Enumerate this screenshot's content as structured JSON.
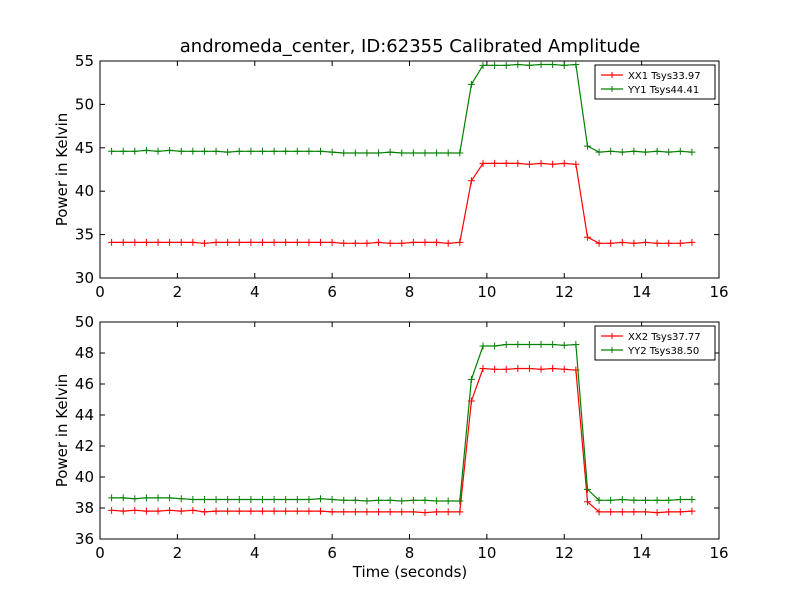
{
  "chart_data": [
    {
      "type": "line",
      "title": "andromeda_center, ID:62355 Calibrated Amplitude",
      "xlabel": "",
      "ylabel": "Power in Kelvin",
      "xlim": [
        0,
        16
      ],
      "ylim": [
        30,
        55
      ],
      "xticks": [
        "0",
        "2",
        "4",
        "6",
        "8",
        "10",
        "12",
        "14",
        "16"
      ],
      "yticks": [
        "30",
        "35",
        "40",
        "45",
        "50",
        "55"
      ],
      "legend_position": "top-right",
      "grid": false,
      "x": [
        0.3,
        0.6,
        0.9,
        1.2,
        1.5,
        1.8,
        2.1,
        2.4,
        2.7,
        3.0,
        3.3,
        3.6,
        3.9,
        4.2,
        4.5,
        4.8,
        5.1,
        5.4,
        5.7,
        6.0,
        6.3,
        6.6,
        6.9,
        7.2,
        7.5,
        7.8,
        8.1,
        8.4,
        8.7,
        9.0,
        9.3,
        9.6,
        9.9,
        10.2,
        10.5,
        10.8,
        11.1,
        11.4,
        11.7,
        12.0,
        12.3,
        12.6,
        12.9,
        13.2,
        13.5,
        13.8,
        14.1,
        14.4,
        14.7,
        15.0,
        15.3
      ],
      "series": [
        {
          "name": "XX1 Tsys33.97",
          "color": "#ff0000",
          "values": [
            34.1,
            34.1,
            34.1,
            34.1,
            34.1,
            34.1,
            34.1,
            34.1,
            34.0,
            34.1,
            34.1,
            34.1,
            34.1,
            34.1,
            34.1,
            34.1,
            34.1,
            34.1,
            34.1,
            34.1,
            34.0,
            34.0,
            34.0,
            34.1,
            34.0,
            34.0,
            34.1,
            34.1,
            34.1,
            34.0,
            34.1,
            41.2,
            43.2,
            43.2,
            43.2,
            43.2,
            43.1,
            43.2,
            43.1,
            43.2,
            43.1,
            34.7,
            34.0,
            34.0,
            34.1,
            34.0,
            34.1,
            34.0,
            34.0,
            34.0,
            34.1
          ]
        },
        {
          "name": "YY1 Tsys44.41",
          "color": "#008000",
          "values": [
            44.6,
            44.6,
            44.6,
            44.7,
            44.6,
            44.7,
            44.6,
            44.6,
            44.6,
            44.6,
            44.5,
            44.6,
            44.6,
            44.6,
            44.6,
            44.6,
            44.6,
            44.6,
            44.6,
            44.5,
            44.4,
            44.4,
            44.4,
            44.4,
            44.5,
            44.4,
            44.4,
            44.4,
            44.4,
            44.4,
            44.4,
            52.3,
            54.5,
            54.5,
            54.5,
            54.6,
            54.5,
            54.6,
            54.6,
            54.5,
            54.6,
            45.2,
            44.5,
            44.6,
            44.5,
            44.6,
            44.5,
            44.6,
            44.5,
            44.6,
            44.5
          ]
        }
      ]
    },
    {
      "type": "line",
      "title": "",
      "xlabel": "Time (seconds)",
      "ylabel": "Power in Kelvin",
      "xlim": [
        0,
        16
      ],
      "ylim": [
        36,
        50
      ],
      "xticks": [
        "0",
        "2",
        "4",
        "6",
        "8",
        "10",
        "12",
        "14",
        "16"
      ],
      "yticks": [
        "36",
        "38",
        "40",
        "42",
        "44",
        "46",
        "48",
        "50"
      ],
      "legend_position": "top-right",
      "grid": false,
      "x": [
        0.3,
        0.6,
        0.9,
        1.2,
        1.5,
        1.8,
        2.1,
        2.4,
        2.7,
        3.0,
        3.3,
        3.6,
        3.9,
        4.2,
        4.5,
        4.8,
        5.1,
        5.4,
        5.7,
        6.0,
        6.3,
        6.6,
        6.9,
        7.2,
        7.5,
        7.8,
        8.1,
        8.4,
        8.7,
        9.0,
        9.3,
        9.6,
        9.9,
        10.2,
        10.5,
        10.8,
        11.1,
        11.4,
        11.7,
        12.0,
        12.3,
        12.6,
        12.9,
        13.2,
        13.5,
        13.8,
        14.1,
        14.4,
        14.7,
        15.0,
        15.3
      ],
      "series": [
        {
          "name": "XX2 Tsys37.77",
          "color": "#ff0000",
          "values": [
            37.85,
            37.8,
            37.85,
            37.8,
            37.8,
            37.85,
            37.8,
            37.85,
            37.75,
            37.8,
            37.8,
            37.8,
            37.8,
            37.8,
            37.8,
            37.8,
            37.8,
            37.8,
            37.8,
            37.75,
            37.75,
            37.75,
            37.75,
            37.75,
            37.75,
            37.75,
            37.75,
            37.7,
            37.75,
            37.75,
            37.75,
            44.9,
            47.0,
            46.95,
            46.95,
            47.0,
            47.0,
            46.95,
            47.0,
            46.95,
            46.9,
            38.4,
            37.75,
            37.75,
            37.75,
            37.75,
            37.75,
            37.7,
            37.75,
            37.75,
            37.8
          ]
        },
        {
          "name": "YY2 Tsys38.50",
          "color": "#008000",
          "values": [
            38.65,
            38.65,
            38.6,
            38.65,
            38.65,
            38.65,
            38.6,
            38.55,
            38.55,
            38.55,
            38.55,
            38.55,
            38.55,
            38.55,
            38.55,
            38.55,
            38.55,
            38.55,
            38.6,
            38.55,
            38.5,
            38.5,
            38.45,
            38.5,
            38.5,
            38.45,
            38.5,
            38.5,
            38.45,
            38.45,
            38.45,
            46.3,
            48.45,
            48.45,
            48.55,
            48.55,
            48.55,
            48.55,
            48.55,
            48.5,
            48.55,
            39.2,
            38.5,
            38.5,
            38.55,
            38.5,
            38.5,
            38.5,
            38.5,
            38.55,
            38.55
          ]
        }
      ]
    }
  ]
}
